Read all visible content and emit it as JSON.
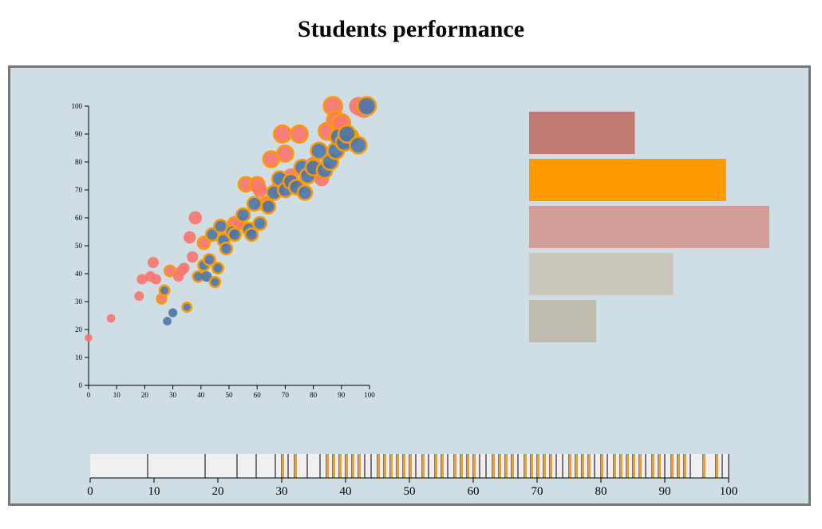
{
  "page": {
    "title": "Students performance"
  },
  "colors": {
    "panel_bg": "#cfdde4",
    "female": "#f8766d",
    "male": "#4a76a8",
    "highlight_stroke": "#ff9a00",
    "strip_bg": "#f0f0f0"
  },
  "chart_data": [
    {
      "type": "scatter",
      "title": "",
      "xlabel": "",
      "ylabel": "",
      "xlim": [
        0,
        100
      ],
      "ylim": [
        0,
        100
      ],
      "x_ticks": [
        0,
        10,
        20,
        30,
        40,
        50,
        60,
        70,
        80,
        90,
        100
      ],
      "y_ticks": [
        0,
        10,
        20,
        30,
        40,
        50,
        60,
        70,
        80,
        90,
        100
      ],
      "series": [
        {
          "color": "#f8766d",
          "points": [
            [
              0,
              17,
              0
            ],
            [
              8,
              24,
              0
            ],
            [
              18,
              32,
              0
            ],
            [
              19,
              38,
              0
            ],
            [
              22,
              39,
              0
            ],
            [
              23,
              44,
              0
            ],
            [
              24,
              38,
              0
            ],
            [
              26,
              31,
              1
            ],
            [
              29,
              41,
              1
            ],
            [
              32,
              39,
              0
            ],
            [
              33,
              41,
              0
            ],
            [
              34,
              42,
              0
            ],
            [
              36,
              53,
              0
            ],
            [
              37,
              46,
              0
            ],
            [
              38,
              60,
              0
            ],
            [
              41,
              51,
              1
            ],
            [
              52,
              58,
              1
            ],
            [
              54,
              58,
              0
            ],
            [
              56,
              72,
              1
            ],
            [
              60,
              72,
              1
            ],
            [
              61,
              70,
              0
            ],
            [
              63,
              65,
              1
            ],
            [
              65,
              81,
              1
            ],
            [
              67,
              70,
              0
            ],
            [
              69,
              90,
              1
            ],
            [
              70,
              83,
              1
            ],
            [
              72,
              75,
              0
            ],
            [
              75,
              90,
              1
            ],
            [
              80,
              79,
              0
            ],
            [
              83,
              74,
              0
            ],
            [
              85,
              91,
              1
            ],
            [
              87,
              100,
              1
            ],
            [
              88,
              95,
              1
            ],
            [
              90,
              94,
              1
            ],
            [
              91,
              88,
              0
            ],
            [
              93,
              89,
              1
            ],
            [
              96,
              100,
              0
            ],
            [
              98,
              99,
              0
            ]
          ]
        },
        {
          "color": "#4a76a8",
          "points": [
            [
              28,
              23,
              0
            ],
            [
              30,
              26,
              0
            ],
            [
              27,
              34,
              1
            ],
            [
              35,
              28,
              1
            ],
            [
              39,
              39,
              1
            ],
            [
              42,
              39,
              0
            ],
            [
              41,
              43,
              1
            ],
            [
              43,
              45,
              1
            ],
            [
              45,
              37,
              1
            ],
            [
              46,
              42,
              1
            ],
            [
              44,
              54,
              1
            ],
            [
              47,
              57,
              1
            ],
            [
              48,
              52,
              1
            ],
            [
              49,
              49,
              1
            ],
            [
              51,
              55,
              1
            ],
            [
              52,
              54,
              1
            ],
            [
              55,
              61,
              1
            ],
            [
              57,
              56,
              1
            ],
            [
              58,
              54,
              1
            ],
            [
              59,
              65,
              1
            ],
            [
              61,
              58,
              1
            ],
            [
              64,
              64,
              1
            ],
            [
              66,
              69,
              1
            ],
            [
              68,
              74,
              1
            ],
            [
              70,
              70,
              1
            ],
            [
              72,
              73,
              1
            ],
            [
              74,
              71,
              1
            ],
            [
              76,
              78,
              1
            ],
            [
              77,
              69,
              1
            ],
            [
              78,
              75,
              1
            ],
            [
              80,
              78,
              1
            ],
            [
              82,
              84,
              1
            ],
            [
              84,
              77,
              1
            ],
            [
              86,
              80,
              1
            ],
            [
              88,
              84,
              1
            ],
            [
              89,
              89,
              1
            ],
            [
              91,
              87,
              1
            ],
            [
              92,
              90,
              1
            ],
            [
              96,
              86,
              1
            ],
            [
              99,
              100,
              1
            ]
          ]
        }
      ]
    },
    {
      "type": "bar",
      "orientation": "horizontal",
      "title": "",
      "values": [
        44,
        82,
        100,
        60,
        28
      ],
      "colors": [
        "#bf7b72",
        "#ff9a00",
        "#d39e98",
        "#cbc7bc",
        "#bfbbae"
      ],
      "xlim": [
        0,
        100
      ]
    },
    {
      "type": "strip",
      "title": "",
      "xlim": [
        0,
        100
      ],
      "x_ticks": [
        0,
        10,
        20,
        30,
        40,
        50,
        60,
        70,
        80,
        90,
        100
      ],
      "values": [
        9,
        18,
        23,
        26,
        29,
        30,
        31,
        32,
        34,
        36,
        37,
        38,
        39,
        40,
        41,
        42,
        43,
        44,
        45,
        46,
        47,
        48,
        49,
        50,
        51,
        52,
        53,
        54,
        55,
        56,
        57,
        58,
        59,
        60,
        61,
        62,
        63,
        64,
        65,
        66,
        67,
        68,
        69,
        70,
        71,
        72,
        73,
        74,
        75,
        76,
        77,
        78,
        79,
        80,
        81,
        82,
        83,
        84,
        85,
        86,
        87,
        88,
        89,
        90,
        91,
        92,
        93,
        94,
        96,
        98,
        99,
        100
      ],
      "highlighted": [
        30,
        32,
        37,
        38,
        39,
        40,
        41,
        42,
        45,
        46,
        47,
        48,
        49,
        50,
        52,
        54,
        55,
        57,
        58,
        59,
        60,
        63,
        64,
        65,
        66,
        68,
        69,
        70,
        71,
        72,
        75,
        76,
        77,
        78,
        80,
        82,
        83,
        84,
        85,
        86,
        88,
        89,
        91,
        92,
        93,
        96,
        98
      ]
    }
  ]
}
